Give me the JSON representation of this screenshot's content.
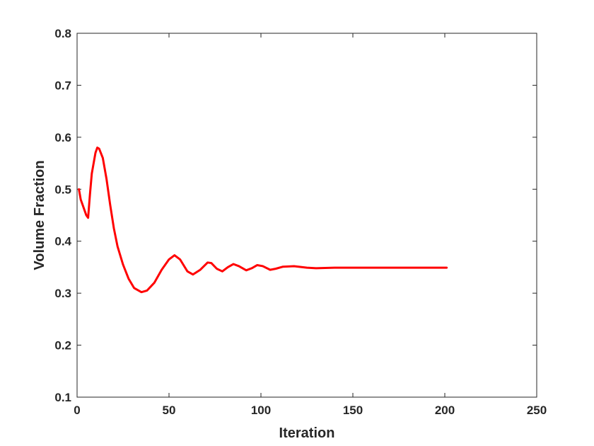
{
  "chart_data": {
    "type": "line",
    "xlabel": "Iteration",
    "ylabel": "Volume Fraction",
    "x": [
      1,
      2,
      3,
      5,
      6,
      7,
      8,
      10,
      11,
      12,
      14,
      16,
      18,
      20,
      22,
      25,
      28,
      31,
      35,
      38,
      42,
      46,
      50,
      53,
      56,
      60,
      63,
      67,
      71,
      73,
      76,
      79,
      82,
      85,
      88,
      92,
      95,
      98,
      101,
      105,
      108,
      112,
      118,
      125,
      130,
      140,
      150,
      175,
      201
    ],
    "series": [
      {
        "name": "Volume Fraction",
        "color": "#ff0000",
        "values": [
          0.5,
          0.48,
          0.47,
          0.45,
          0.445,
          0.49,
          0.53,
          0.57,
          0.58,
          0.578,
          0.56,
          0.52,
          0.47,
          0.425,
          0.39,
          0.355,
          0.328,
          0.31,
          0.302,
          0.305,
          0.32,
          0.345,
          0.365,
          0.373,
          0.365,
          0.342,
          0.336,
          0.345,
          0.359,
          0.358,
          0.347,
          0.342,
          0.35,
          0.356,
          0.352,
          0.344,
          0.348,
          0.354,
          0.352,
          0.345,
          0.347,
          0.351,
          0.352,
          0.349,
          0.348,
          0.349,
          0.349,
          0.349,
          0.349
        ]
      }
    ],
    "xlim": [
      0,
      250
    ],
    "ylim": [
      0.1,
      0.8
    ],
    "xticks": [
      0,
      50,
      100,
      150,
      200,
      250
    ],
    "yticks": [
      0.1,
      0.2,
      0.3,
      0.4,
      0.5,
      0.6,
      0.7,
      0.8
    ],
    "grid": false
  }
}
